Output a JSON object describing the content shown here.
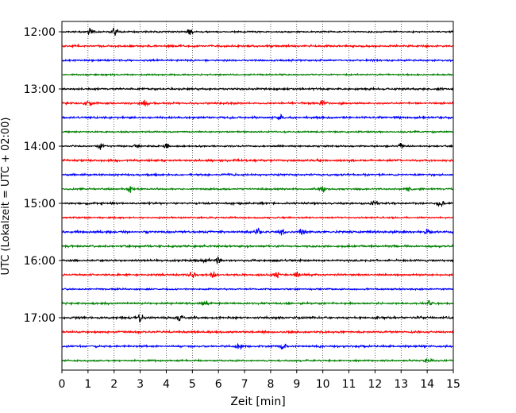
{
  "chart_data": {
    "type": "line",
    "title": "",
    "xlabel": "Zeit  [min]",
    "ylabel": "UTC (Lokalzeit = UTC + 02:00)",
    "xlim": [
      0,
      15
    ],
    "x_ticks": [
      "0",
      "1",
      "2",
      "3",
      "4",
      "5",
      "6",
      "7",
      "8",
      "9",
      "10",
      "11",
      "12",
      "13",
      "14",
      "15"
    ],
    "y_tick_labels": [
      "12:00",
      "13:00",
      "14:00",
      "15:00",
      "16:00",
      "17:00"
    ],
    "trace_interval_min": 15,
    "trace_start": "12:00",
    "trace_count": 24,
    "colors": [
      "#000000",
      "#ff0000",
      "#0000ff",
      "#008000"
    ],
    "grid": "vertical dotted lines at each minute",
    "legend": "none",
    "events": [
      {
        "trace": "12:00",
        "minutes": [
          1.1,
          2.0,
          4.9
        ]
      },
      {
        "trace": "13:15",
        "minutes": [
          1.0,
          3.2,
          10.0
        ]
      },
      {
        "trace": "13:30",
        "minutes": [
          8.4
        ]
      },
      {
        "trace": "14:00",
        "minutes": [
          1.5,
          2.9,
          4.0,
          13.0
        ]
      },
      {
        "trace": "14:45",
        "minutes": [
          2.6,
          10.0,
          13.3
        ]
      },
      {
        "trace": "15:00",
        "minutes": [
          12.0,
          14.5
        ]
      },
      {
        "trace": "15:30",
        "minutes": [
          7.5,
          8.4,
          9.2,
          14.0
        ]
      },
      {
        "trace": "16:00",
        "minutes": [
          5.5,
          6.0
        ]
      },
      {
        "trace": "16:15",
        "minutes": [
          5.0,
          5.8,
          8.2,
          9.0
        ]
      },
      {
        "trace": "16:45",
        "minutes": [
          5.5,
          14.1
        ]
      },
      {
        "trace": "17:00",
        "minutes": [
          3.0,
          4.5
        ]
      },
      {
        "trace": "17:30",
        "minutes": [
          6.8,
          8.5
        ]
      },
      {
        "trace": "17:45",
        "minutes": [
          14.0
        ]
      }
    ]
  }
}
